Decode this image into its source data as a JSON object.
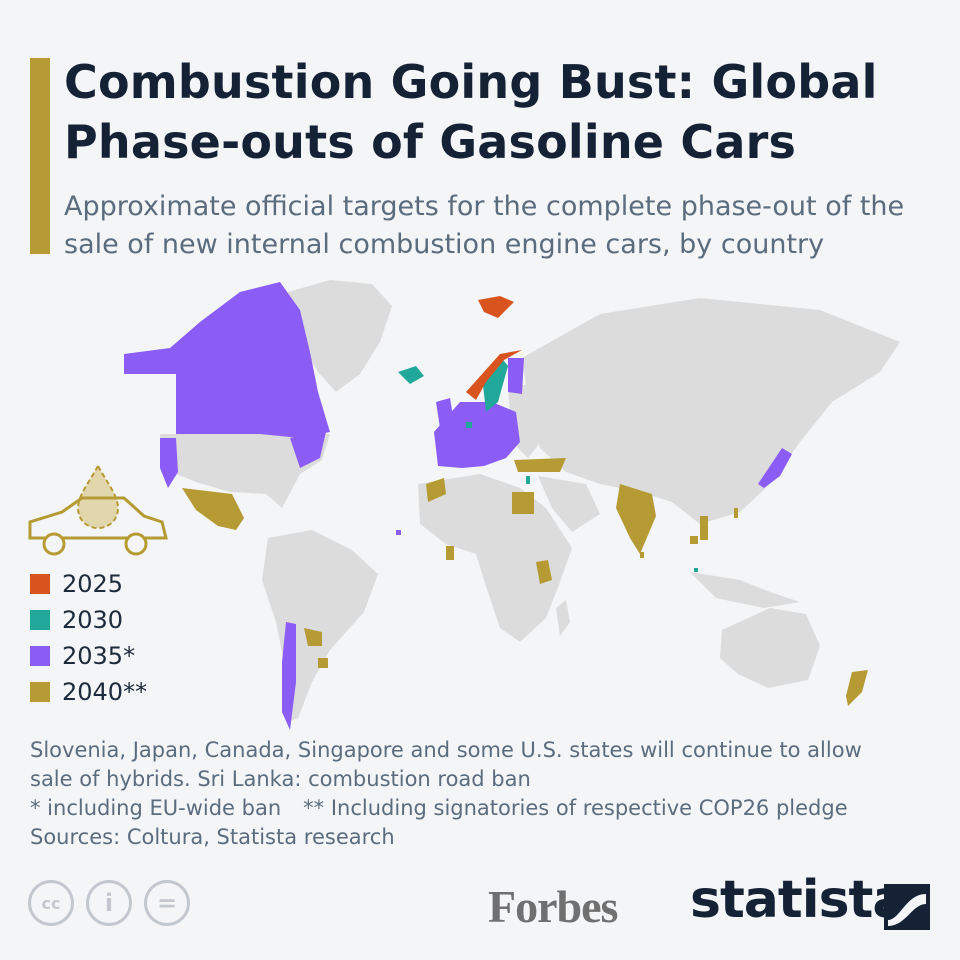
{
  "title": "Combustion Going Bust: Global Phase-outs of Gasoline Cars",
  "subtitle": "Approximate official targets for the complete phase-out of the sale of new internal combustion engine cars, by country",
  "legend": [
    {
      "label": "2025",
      "color": "#d9531e"
    },
    {
      "label": "2030",
      "color": "#22a89a"
    },
    {
      "label": "2035*",
      "color": "#8b5cf6"
    },
    {
      "label": "2040**",
      "color": "#b69a33"
    }
  ],
  "notes": {
    "line1": "Slovenia, Japan, Canada, Singapore and some U.S. states will continue to allow",
    "line2": "sale of hybrids. Sri Lanka: combustion road ban",
    "line3a": "* including EU-wide ban",
    "line3b": "** Including signatories of respective COP26 pledge",
    "sources": "Sources: Coltura, Statista research"
  },
  "map": {
    "base_color": "#dcdcdc",
    "regions": {
      "2025": [
        "Norway",
        "Svalbard"
      ],
      "2030": [
        "Iceland",
        "Sweden",
        "Netherlands",
        "Israel",
        "Singapore"
      ],
      "2035": [
        "Canada",
        "Alaska",
        "U.S. states",
        "European Union",
        "United Kingdom",
        "Japan",
        "Chile",
        "Cabo Verde"
      ],
      "2040": [
        "Mexico",
        "Turkey",
        "Morocco",
        "Egypt",
        "India",
        "Kenya",
        "Ghana",
        "Paraguay",
        "Uruguay",
        "New Zealand",
        "Vietnam",
        "Philippines",
        "Cambodia"
      ]
    }
  },
  "icons": {
    "car": "car-drop-icon",
    "cc": "cc",
    "by": "i",
    "nd": "="
  },
  "brands": {
    "forbes": "Forbes",
    "statista": "statista"
  }
}
